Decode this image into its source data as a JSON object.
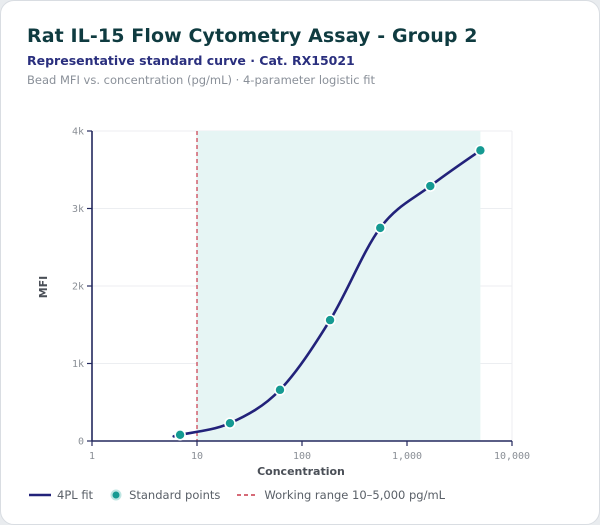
{
  "header": {
    "title": "Rat IL-15 Flow Cytometry Assay - Group 2",
    "subtitle": "Representative standard curve · Cat. RX15021",
    "caption": "Bead MFI vs. concentration (pg/mL) · 4-parameter logistic fit"
  },
  "colors": {
    "curve": "#22227a",
    "points": "#159a92",
    "point_outline": "#ffffff",
    "range_line": "#c8384a",
    "range_fill": "#e6f5f4",
    "grid": "#eceef1",
    "axis": "#23285e"
  },
  "chart_data": {
    "type": "scatter",
    "xlabel": "Concentration",
    "ylabel": "MFI",
    "x_scale": "log",
    "xlim": [
      1,
      10000
    ],
    "ylim": [
      0,
      4000
    ],
    "x_ticks": [
      1,
      10,
      100,
      1000,
      10000
    ],
    "x_tick_labels": [
      "1",
      "10",
      "100",
      "1,000",
      "10,000"
    ],
    "y_ticks": [
      0,
      1000,
      2000,
      3000,
      4000
    ],
    "y_tick_labels": [
      "0",
      "1k",
      "2k",
      "3k",
      "4k"
    ],
    "grid": true,
    "legend_position": "bottom",
    "series": [
      {
        "name": "4PL fit",
        "kind": "line",
        "x_range": [
          6,
          5000
        ]
      },
      {
        "name": "Standard points",
        "kind": "scatter",
        "points": [
          {
            "x": 6.9,
            "y": 80
          },
          {
            "x": 20.6,
            "y": 230
          },
          {
            "x": 61.7,
            "y": 660
          },
          {
            "x": 185,
            "y": 1560
          },
          {
            "x": 556,
            "y": 2750
          },
          {
            "x": 1667,
            "y": 3290
          },
          {
            "x": 5000,
            "y": 3750
          }
        ]
      }
    ],
    "working_range": {
      "label": "Working range 10–5,000 pg/mL",
      "start": 10,
      "end": 5000
    }
  },
  "legend": {
    "fit_label": "4PL fit",
    "points_label": "Standard points",
    "range_label": "Working range 10–5,000 pg/mL"
  }
}
